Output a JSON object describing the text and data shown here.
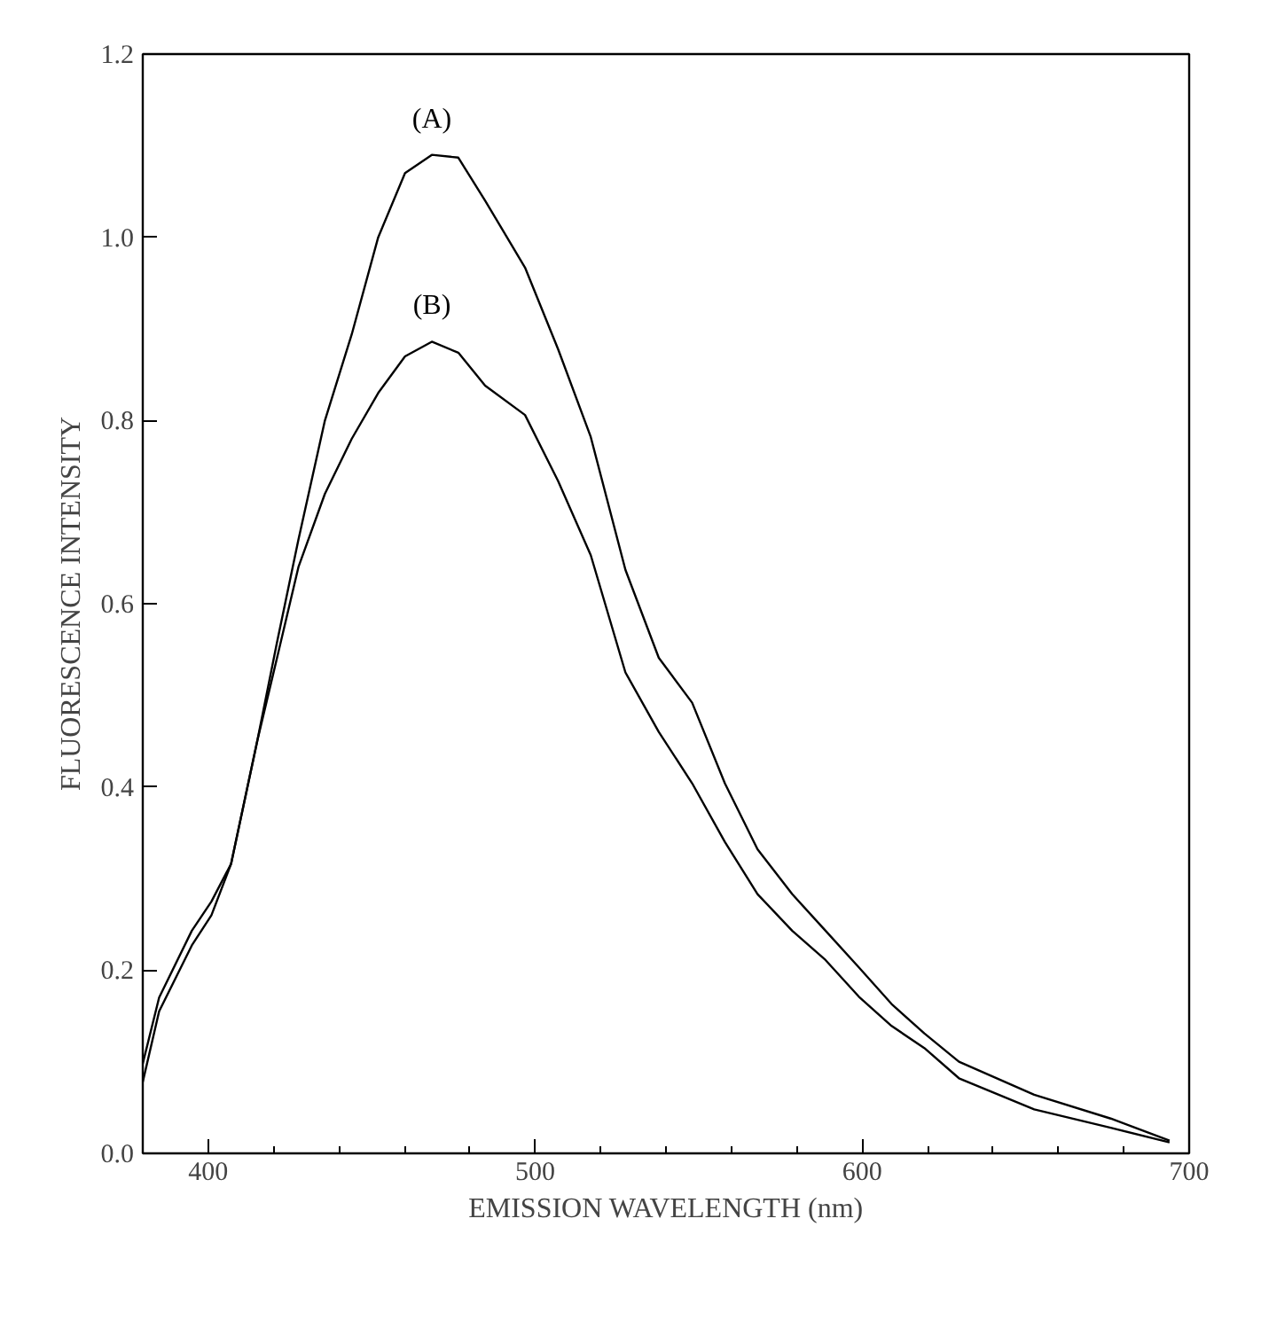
{
  "chart_data": {
    "type": "line",
    "xlabel": "EMISSION WAVELENGTH (nm)",
    "ylabel": "FLUORESCENCE INTENSITY",
    "xlim": [
      380,
      700
    ],
    "ylim": [
      0,
      1.2
    ],
    "xticks": [
      400,
      {
        "value": 420,
        "label": null
      },
      {
        "value": 440,
        "label": null
      },
      {
        "value": 460,
        "label": null
      },
      {
        "value": 480,
        "label": null
      },
      500,
      {
        "value": 520,
        "label": null
      },
      {
        "value": 540,
        "label": null
      },
      {
        "value": 560,
        "label": null
      },
      {
        "value": 580,
        "label": null
      },
      600,
      {
        "value": 620,
        "label": null
      },
      {
        "value": 640,
        "label": null
      },
      {
        "value": 660,
        "label": null
      },
      {
        "value": 680,
        "label": null
      },
      700
    ],
    "yticks": [
      {
        "value": 0,
        "label": "0.0"
      },
      0.2,
      0.4,
      0.6,
      0.8,
      {
        "value": 1,
        "label": "1.0"
      },
      1.2
    ],
    "grid": false,
    "marker": "none",
    "line_style": "solid",
    "series": [
      {
        "name": "(A)",
        "color": "#000000",
        "x": [
          380,
          385,
          395,
          401,
          407,
          415,
          421,
          427.6,
          435.7,
          443.9,
          452,
          460.2,
          468.4,
          476.5,
          484.7,
          496.9,
          507,
          517,
          527.6,
          537.8,
          548,
          558,
          568,
          578.6,
          588.8,
          599,
          609,
          619,
          629.6,
          652.6,
          676,
          694
        ],
        "values": [
          0.078,
          0.155,
          0.227,
          0.26,
          0.316,
          0.45,
          0.557,
          0.67,
          0.8,
          0.894,
          1.0,
          1.07,
          1.09,
          1.087,
          1.04,
          0.967,
          0.878,
          0.782,
          0.637,
          0.541,
          0.492,
          0.404,
          0.332,
          0.283,
          0.243,
          0.203,
          0.163,
          0.131,
          0.1,
          0.064,
          0.038,
          0.014
        ]
      },
      {
        "name": "(B)",
        "color": "#000000",
        "x": [
          380,
          385,
          395,
          401,
          407,
          415,
          421,
          427.6,
          435.7,
          443.9,
          452,
          460.2,
          468.4,
          476.5,
          484.7,
          496.9,
          507,
          517,
          527.6,
          537.8,
          548,
          558,
          568,
          578.6,
          588.8,
          599,
          609,
          619,
          629.6,
          652.6,
          676,
          694
        ],
        "values": [
          0.098,
          0.17,
          0.243,
          0.275,
          0.316,
          0.45,
          0.54,
          0.64,
          0.72,
          0.78,
          0.83,
          0.87,
          0.886,
          0.874,
          0.838,
          0.806,
          0.734,
          0.653,
          0.525,
          0.46,
          0.404,
          0.34,
          0.283,
          0.243,
          0.211,
          0.171,
          0.139,
          0.115,
          0.082,
          0.048,
          0.028,
          0.012
        ]
      }
    ]
  }
}
